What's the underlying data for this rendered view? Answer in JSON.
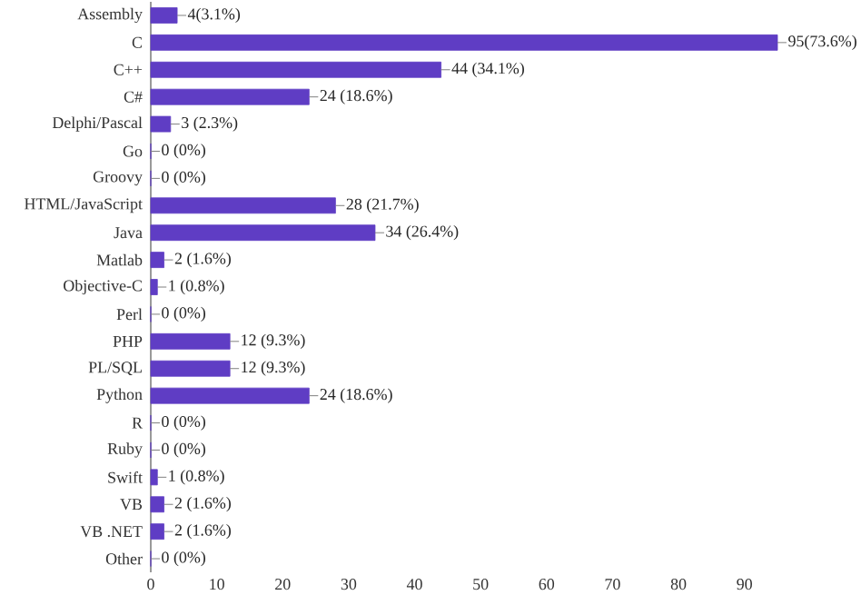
{
  "chart_data": {
    "type": "bar",
    "orientation": "horizontal",
    "categories": [
      "Assembly",
      "C",
      "C++",
      "C#",
      "Delphi/Pascal",
      "Go",
      "Groovy",
      "HTML/JavaScript",
      "Java",
      "Matlab",
      "Objective-C",
      "Perl",
      "PHP",
      "PL/SQL",
      "Python",
      "R",
      "Ruby",
      "Swift",
      "VB",
      "VB .NET",
      "Other"
    ],
    "values": [
      4,
      95,
      44,
      24,
      3,
      0,
      0,
      28,
      34,
      2,
      1,
      0,
      12,
      12,
      24,
      0,
      0,
      1,
      2,
      2,
      0
    ],
    "value_labels": [
      "4(3.1%)",
      "95(73.6%)",
      "44 (34.1%)",
      "24 (18.6%)",
      "3 (2.3%)",
      "0 (0%)",
      "0 (0%)",
      "28 (21.7%)",
      "34 (26.4%)",
      "2 (1.6%)",
      "1 (0.8%)",
      "0 (0%)",
      "12 (9.3%)",
      "12 (9.3%)",
      "24 (18.6%)",
      "0 (0%)",
      "0 (0%)",
      "1 (0.8%)",
      "2 (1.6%)",
      "2 (1.6%)",
      "0 (0%)"
    ],
    "color": "#5f3dc4",
    "xlim": [
      0,
      95
    ],
    "xticks": [
      0,
      10,
      20,
      30,
      40,
      50,
      60,
      70,
      80,
      90
    ]
  }
}
